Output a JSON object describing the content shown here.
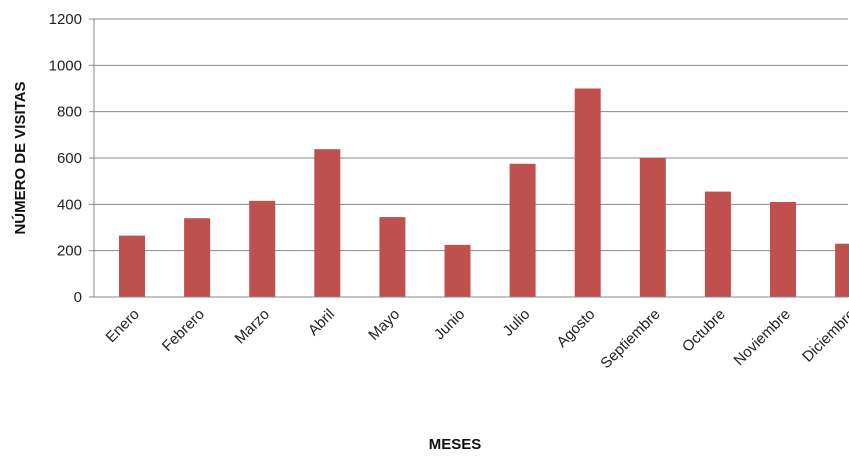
{
  "chart_data": {
    "type": "bar",
    "title": "",
    "xlabel": "MESES",
    "ylabel": "NÚMERO DE VISITAS",
    "categories": [
      "Enero",
      "Febrero",
      "Marzo",
      "Abril",
      "Mayo",
      "Junio",
      "Julio",
      "Agosto",
      "Septiembre",
      "Octubre",
      "Noviembre",
      "Diciembre"
    ],
    "values": [
      265,
      340,
      415,
      638,
      345,
      225,
      575,
      900,
      600,
      455,
      410,
      230
    ],
    "ylim": [
      0,
      1200
    ],
    "yticks": [
      0,
      200,
      400,
      600,
      800,
      1000,
      1200
    ],
    "grid": "horizontal",
    "legend": "none",
    "bar_color": "#c0504d",
    "grid_color": "#888888"
  }
}
